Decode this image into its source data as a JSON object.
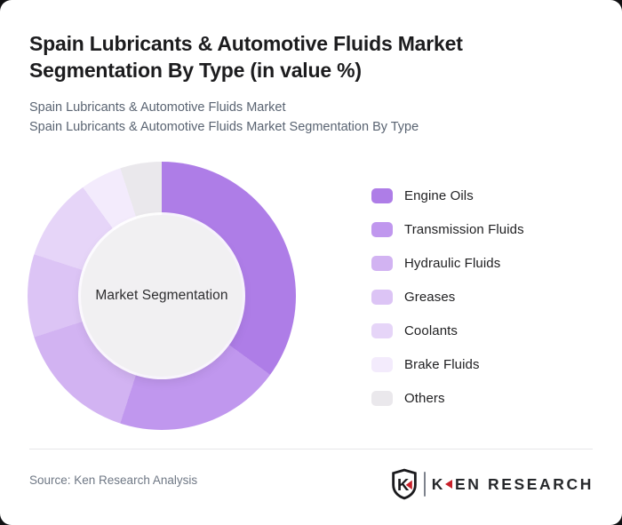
{
  "header": {
    "title": "Spain Lubricants & Automotive Fluids Market Segmentation By Type (in value %)",
    "subtitle1": "Spain Lubricants & Automotive Fluids Market",
    "subtitle2": "Spain Lubricants & Automotive Fluids Market Segmentation By Type"
  },
  "chart_data": {
    "type": "pie",
    "variant": "donut",
    "title": "Spain Lubricants & Automotive Fluids Market Segmentation By Type (in value %)",
    "center_label": "Market Segmentation",
    "categories": [
      "Engine Oils",
      "Transmission Fluids",
      "Hydraulic Fluids",
      "Greases",
      "Coolants",
      "Brake Fluids",
      "Others"
    ],
    "values": [
      35,
      20,
      15,
      10,
      10,
      5,
      5
    ],
    "unit": "%",
    "colors": [
      "#ae7de7",
      "#c097ee",
      "#d2b3f2",
      "#dcc4f5",
      "#e6d5f8",
      "#f3ebfc",
      "#eae8ec"
    ],
    "start_angle_deg": 0,
    "direction": "clockwise",
    "legend_position": "right",
    "hole_color": "#f1f0f2"
  },
  "footer": {
    "source": "Source: Ken Research Analysis",
    "logo": {
      "shield_letter": "K",
      "wordmark_k": "K",
      "wordmark_rest": "EN RESEARCH",
      "accent_red": "#c8202a",
      "dark": "#26282b"
    }
  }
}
